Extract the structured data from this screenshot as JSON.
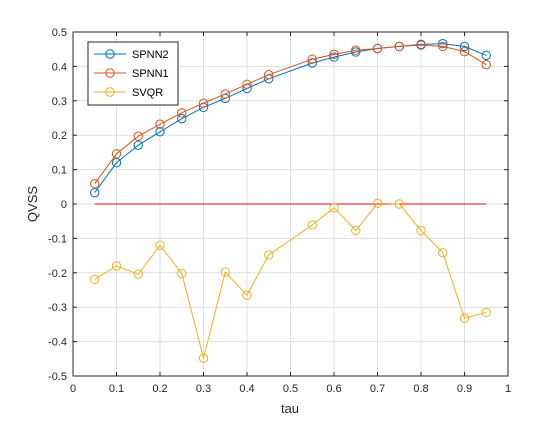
{
  "chart_data": {
    "type": "line",
    "title": "",
    "xlabel": "tau",
    "ylabel": "QVSS",
    "xlim": [
      0,
      1
    ],
    "ylim": [
      -0.5,
      0.5
    ],
    "xticks": [
      "0",
      "0.1",
      "0.2",
      "0.3",
      "0.4",
      "0.5",
      "0.6",
      "0.7",
      "0.8",
      "0.9",
      "1"
    ],
    "yticks": [
      "-0.5",
      "-0.4",
      "-0.3",
      "-0.2",
      "-0.1",
      "0",
      "0.1",
      "0.2",
      "0.3",
      "0.4",
      "0.5"
    ],
    "grid": true,
    "legend_position": "top-left",
    "x": [
      0.05,
      0.1,
      0.15,
      0.2,
      0.25,
      0.3,
      0.35,
      0.4,
      0.45,
      0.55,
      0.6,
      0.65,
      0.7,
      0.75,
      0.8,
      0.85,
      0.9,
      0.95
    ],
    "series": [
      {
        "name": "SPNN2",
        "color": "#0072BD",
        "values": [
          0.033,
          0.12,
          0.171,
          0.21,
          0.248,
          0.281,
          0.307,
          0.336,
          0.364,
          0.41,
          0.427,
          0.442,
          0.452,
          0.458,
          0.464,
          0.466,
          0.458,
          0.432
        ]
      },
      {
        "name": "SPNN1",
        "color": "#D95319",
        "values": [
          0.059,
          0.146,
          0.197,
          0.232,
          0.265,
          0.293,
          0.32,
          0.348,
          0.376,
          0.421,
          0.435,
          0.447,
          0.452,
          0.458,
          0.462,
          0.458,
          0.443,
          0.405
        ]
      },
      {
        "name": "SVQR",
        "color": "#EDB120",
        "values": [
          -0.219,
          -0.18,
          -0.204,
          -0.12,
          -0.202,
          -0.448,
          -0.198,
          -0.265,
          -0.148,
          -0.061,
          -0.011,
          -0.077,
          0.002,
          0.0,
          -0.077,
          -0.142,
          -0.332,
          -0.315
        ]
      }
    ],
    "reference_line": {
      "y": 0,
      "x_range": [
        0.05,
        0.95
      ],
      "color": "#FF0000"
    }
  }
}
